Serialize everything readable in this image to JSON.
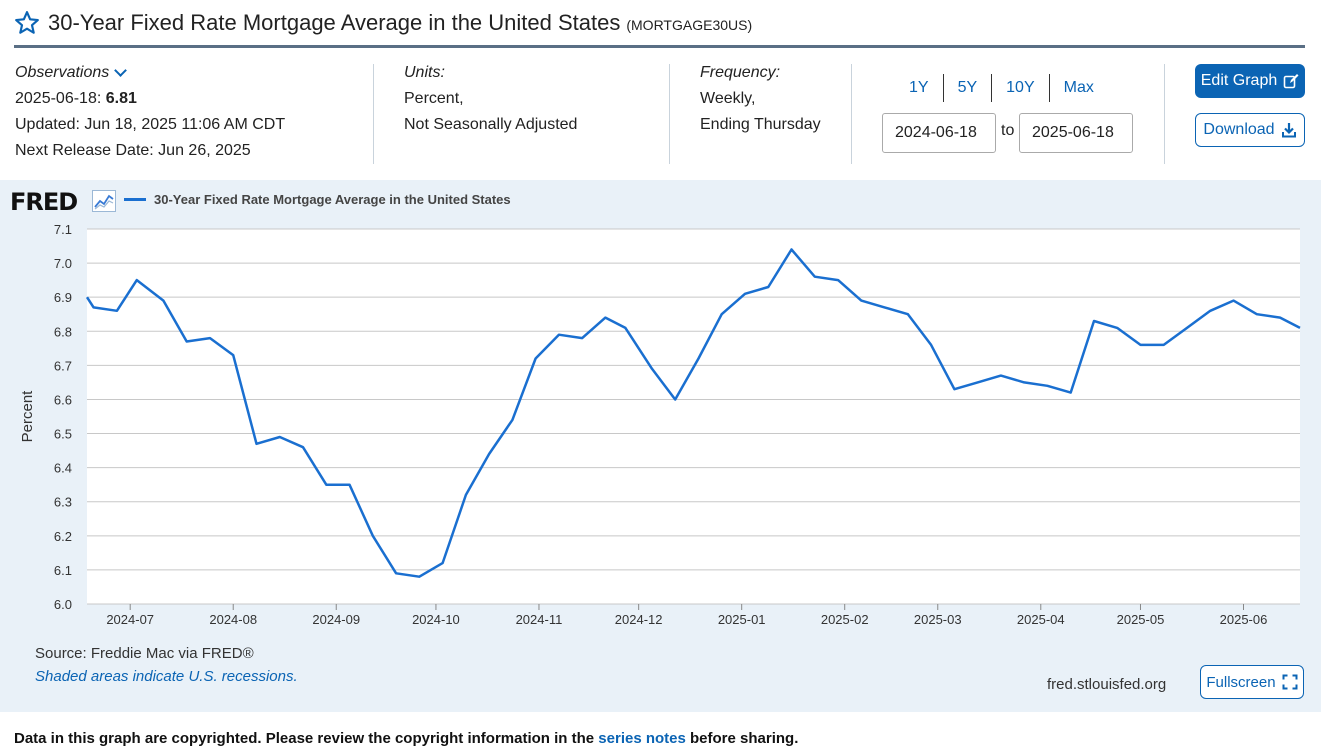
{
  "header": {
    "title": "30-Year Fixed Rate Mortgage Average in the United States",
    "series_id": "(MORTGAGE30US)"
  },
  "observations": {
    "label": "Observations",
    "date": "2025-06-18",
    "value": "6.81",
    "updated": "Updated: Jun 18, 2025 11:06 AM CDT",
    "next_release": "Next Release Date: Jun 26, 2025"
  },
  "units": {
    "label": "Units:",
    "line1": "Percent,",
    "line2": "Not Seasonally Adjusted"
  },
  "frequency": {
    "label": "Frequency:",
    "line1": "Weekly,",
    "line2": "Ending Thursday"
  },
  "range": {
    "buttons": [
      "1Y",
      "5Y",
      "10Y",
      "Max"
    ],
    "start": "2024-06-18",
    "to_label": "to",
    "end": "2025-06-18"
  },
  "actions": {
    "edit_label": "Edit Graph",
    "download_label": "Download",
    "fullscreen_label": "Fullscreen"
  },
  "chart_panel": {
    "logo": "FRED",
    "source": "Source: Freddie Mac via FRED®",
    "recessions": "Shaded areas indicate U.S. recessions.",
    "url": "fred.stlouisfed.org"
  },
  "footer": {
    "before": "Data in this graph are copyrighted. Please review the copyright information in the ",
    "link": "series notes",
    "after": " before sharing."
  },
  "colors": {
    "line": "#1a6fd0",
    "accent": "#0b64b4",
    "panel_bg": "#e9f1f8"
  },
  "chart_data": {
    "type": "line",
    "title": "",
    "xlabel": "",
    "ylabel": "Percent",
    "ylim": [
      6.0,
      7.1
    ],
    "yticks": [
      6.0,
      6.1,
      6.2,
      6.3,
      6.4,
      6.5,
      6.6,
      6.7,
      6.8,
      6.9,
      7.0,
      7.1
    ],
    "xlim": [
      "2024-06-18",
      "2025-06-18"
    ],
    "xticks": [
      "2024-07",
      "2024-08",
      "2024-09",
      "2024-10",
      "2024-11",
      "2024-12",
      "2025-01",
      "2025-02",
      "2025-03",
      "2025-04",
      "2025-05",
      "2025-06"
    ],
    "grid": true,
    "legend": "top-left",
    "series": [
      {
        "name": "30-Year Fixed Rate Mortgage Average in the United States",
        "x": [
          "2024-06-20",
          "2024-06-27",
          "2024-07-03",
          "2024-07-11",
          "2024-07-18",
          "2024-07-25",
          "2024-08-01",
          "2024-08-08",
          "2024-08-15",
          "2024-08-22",
          "2024-08-29",
          "2024-09-05",
          "2024-09-12",
          "2024-09-19",
          "2024-09-26",
          "2024-10-03",
          "2024-10-10",
          "2024-10-17",
          "2024-10-24",
          "2024-10-31",
          "2024-11-07",
          "2024-11-14",
          "2024-11-21",
          "2024-11-27",
          "2024-12-05",
          "2024-12-12",
          "2024-12-19",
          "2024-12-26",
          "2025-01-02",
          "2025-01-09",
          "2025-01-16",
          "2025-01-23",
          "2025-01-30",
          "2025-02-06",
          "2025-02-13",
          "2025-02-20",
          "2025-02-27",
          "2025-03-06",
          "2025-03-13",
          "2025-03-20",
          "2025-03-27",
          "2025-04-03",
          "2025-04-10",
          "2025-04-17",
          "2025-04-24",
          "2025-05-01",
          "2025-05-08",
          "2025-05-15",
          "2025-05-22",
          "2025-05-29",
          "2025-06-05",
          "2025-06-12",
          "2025-06-18"
        ],
        "values": [
          6.87,
          6.86,
          6.95,
          6.89,
          6.77,
          6.78,
          6.73,
          6.47,
          6.49,
          6.46,
          6.35,
          6.35,
          6.2,
          6.09,
          6.08,
          6.12,
          6.32,
          6.44,
          6.54,
          6.72,
          6.79,
          6.78,
          6.84,
          6.81,
          6.69,
          6.6,
          6.72,
          6.85,
          6.91,
          6.93,
          7.04,
          6.96,
          6.95,
          6.89,
          6.87,
          6.85,
          6.76,
          6.63,
          6.65,
          6.67,
          6.65,
          6.64,
          6.62,
          6.83,
          6.81,
          6.76,
          6.76,
          6.81,
          6.86,
          6.89,
          6.85,
          6.84,
          6.81
        ]
      }
    ]
  }
}
